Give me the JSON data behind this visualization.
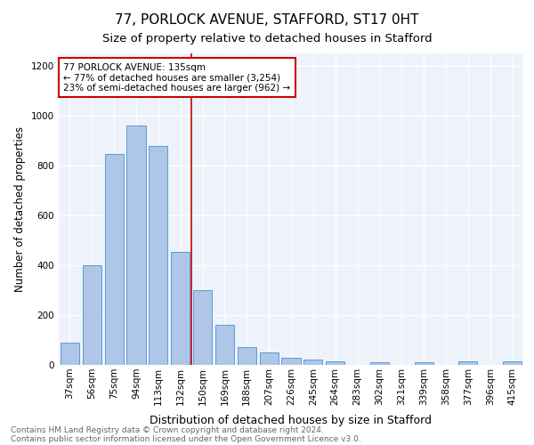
{
  "title1": "77, PORLOCK AVENUE, STAFFORD, ST17 0HT",
  "title2": "Size of property relative to detached houses in Stafford",
  "xlabel": "Distribution of detached houses by size in Stafford",
  "ylabel": "Number of detached properties",
  "categories": [
    "37sqm",
    "56sqm",
    "75sqm",
    "94sqm",
    "113sqm",
    "132sqm",
    "150sqm",
    "169sqm",
    "188sqm",
    "207sqm",
    "226sqm",
    "245sqm",
    "264sqm",
    "283sqm",
    "302sqm",
    "321sqm",
    "339sqm",
    "358sqm",
    "377sqm",
    "396sqm",
    "415sqm"
  ],
  "values": [
    90,
    400,
    845,
    960,
    880,
    455,
    300,
    160,
    70,
    50,
    30,
    20,
    15,
    0,
    10,
    0,
    10,
    0,
    15,
    0,
    15
  ],
  "bar_color": "#aec6e8",
  "bar_edge_color": "#5b9bd5",
  "vline_x": 5.5,
  "vline_color": "#cc0000",
  "annotation_text": "77 PORLOCK AVENUE: 135sqm\n← 77% of detached houses are smaller (3,254)\n23% of semi-detached houses are larger (962) →",
  "annotation_box_color": "#ffffff",
  "annotation_box_edge": "#cc0000",
  "ylim": [
    0,
    1250
  ],
  "yticks": [
    0,
    200,
    400,
    600,
    800,
    1000,
    1200
  ],
  "bg_color": "#eef3fb",
  "footer1": "Contains HM Land Registry data © Crown copyright and database right 2024.",
  "footer2": "Contains public sector information licensed under the Open Government Licence v3.0.",
  "title1_fontsize": 11,
  "title2_fontsize": 9.5,
  "xlabel_fontsize": 9,
  "ylabel_fontsize": 8.5,
  "tick_fontsize": 7.5,
  "footer_fontsize": 6.5
}
